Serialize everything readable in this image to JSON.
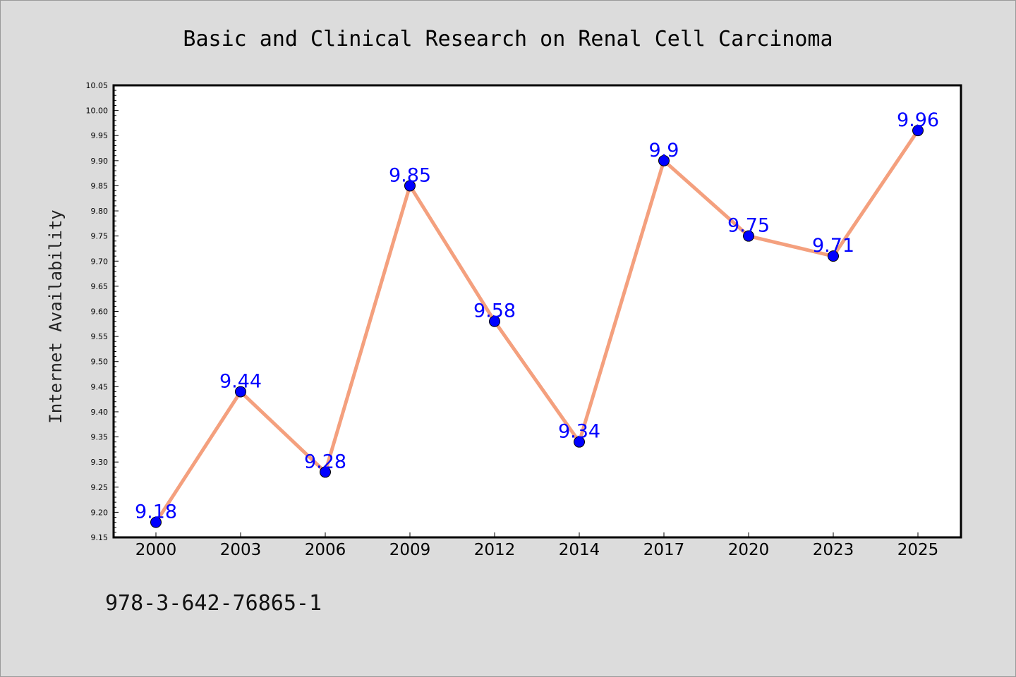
{
  "chart_data": {
    "type": "line",
    "title": "Basic and Clinical Research on Renal Cell Carcinoma",
    "xlabel": "",
    "ylabel": "Internet Availability",
    "categories": [
      "2000",
      "2003",
      "2006",
      "2009",
      "2012",
      "2014",
      "2017",
      "2020",
      "2023",
      "2025"
    ],
    "series": [
      {
        "values": [
          9.18,
          9.44,
          9.28,
          9.85,
          9.58,
          9.34,
          9.9,
          9.75,
          9.71,
          9.96
        ],
        "data_labels": [
          "9.18",
          "9.44",
          "9.28",
          "9.85",
          "9.58",
          "9.34",
          "9.9",
          "9.75",
          "9.71",
          "9.96"
        ]
      }
    ],
    "ylim": [
      9.15,
      10.05
    ],
    "yticks": [
      "9.15",
      "9.20",
      "9.25",
      "9.30",
      "9.35",
      "9.40",
      "9.45",
      "9.50",
      "9.55",
      "9.60",
      "9.65",
      "9.70",
      "9.75",
      "9.80",
      "9.85",
      "9.90",
      "9.95",
      "10.00",
      "10.05"
    ],
    "grid": false,
    "line_color": "#f4a07e",
    "marker_color": "#0000ff",
    "label_color": "#0000ff",
    "plot_background": "#ffffff",
    "figure_background": "#dcdcdc"
  },
  "footer": {
    "isbn": "978-3-642-76865-1"
  }
}
